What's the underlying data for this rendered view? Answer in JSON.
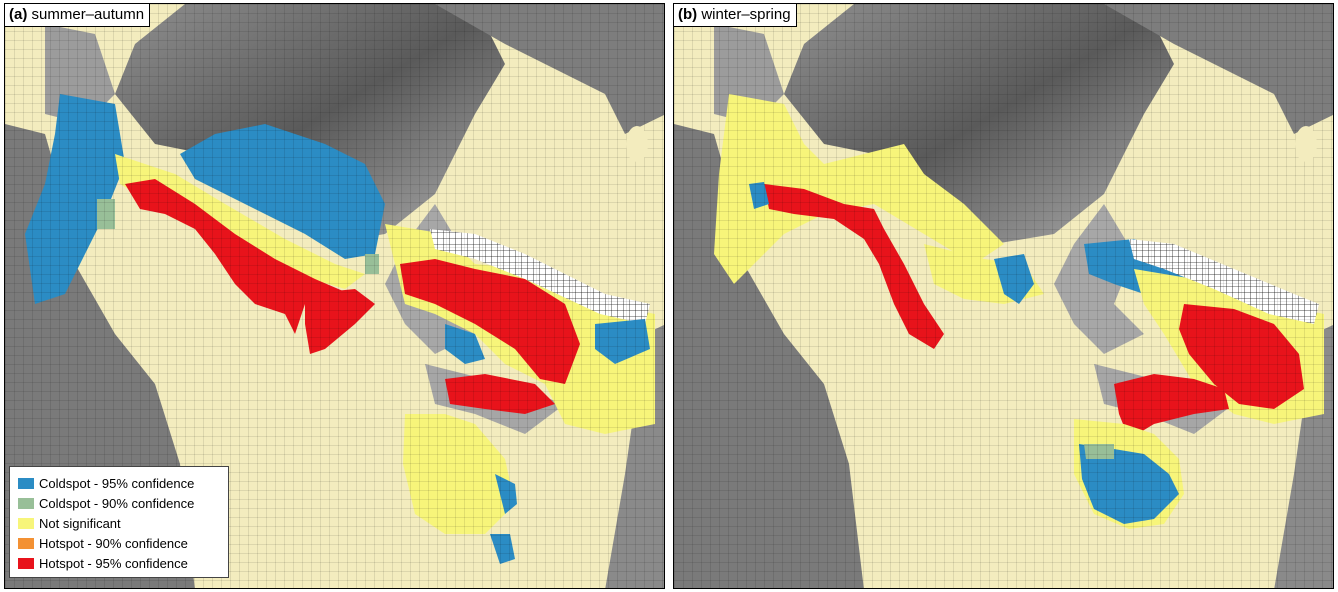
{
  "panels": [
    {
      "letter": "(a)",
      "title": "summer–autumn"
    },
    {
      "letter": "(b)",
      "title": "winter–spring"
    }
  ],
  "legend": [
    {
      "label": "Coldspot - 95% confidence",
      "color": "#2b8cc4"
    },
    {
      "label": "Coldspot - 90% confidence",
      "color": "#98bf98"
    },
    {
      "label": "Not significant",
      "color": "#f7f57a"
    },
    {
      "label": "Hotspot - 90% confidence",
      "color": "#f39133"
    },
    {
      "label": "Hotspot - 95% confidence",
      "color": "#e8131b"
    }
  ],
  "colors": {
    "land": "#f3ecbe",
    "ocean_dark": "#5d5d5d",
    "ocean_light": "#a4a4a4",
    "coldspot95": "#2b8cc4",
    "coldspot90": "#98bf98",
    "not_significant": "#f7f57a",
    "hotspot90": "#f39133",
    "hotspot95": "#e8131b",
    "no_data_grid": "#9a9a9a"
  }
}
